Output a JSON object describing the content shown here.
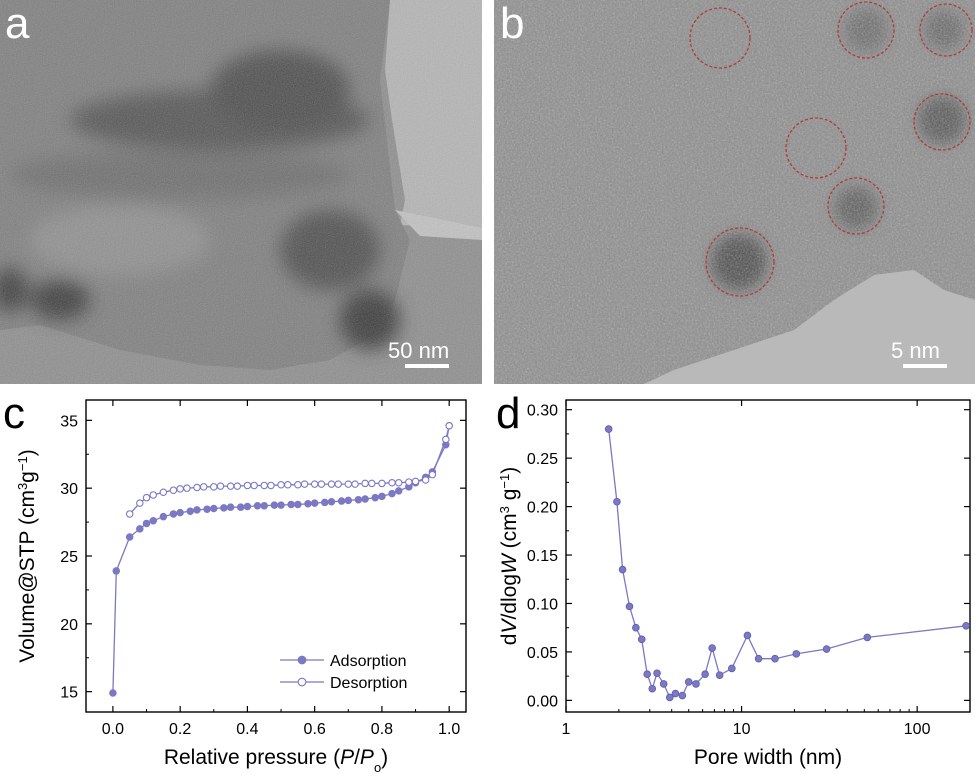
{
  "panels": {
    "a": {
      "letter": "a",
      "scale_label": "50 nm"
    },
    "b": {
      "letter": "b",
      "scale_label": "5 nm"
    },
    "c": {
      "letter": "c"
    },
    "d": {
      "letter": "d"
    }
  },
  "colors": {
    "series": "#7b78c4",
    "axis": "#000000",
    "circle": "#b33a3a"
  },
  "chart_data": [
    {
      "panel": "c",
      "type": "line",
      "xlabel_parts": [
        "Relative pressure (",
        "P",
        "/",
        "P",
        "o",
        ")"
      ],
      "ylabel_parts": [
        "Volume@STP (cm",
        "3",
        "g",
        "−1",
        ")"
      ],
      "xlim": [
        -0.08,
        1.05
      ],
      "ylim": [
        13.5,
        36.5
      ],
      "xticks": [
        "0.0",
        "0.2",
        "0.4",
        "0.6",
        "0.8",
        "1.0"
      ],
      "yticks": [
        "15",
        "20",
        "25",
        "30",
        "35"
      ],
      "legend_position": "bottom-right",
      "series": [
        {
          "name": "Adsorption",
          "marker": "filled",
          "points": [
            [
              0.0,
              14.9
            ],
            [
              0.01,
              23.9
            ],
            [
              0.05,
              26.4
            ],
            [
              0.08,
              27.0
            ],
            [
              0.1,
              27.4
            ],
            [
              0.12,
              27.6
            ],
            [
              0.15,
              27.9
            ],
            [
              0.18,
              28.1
            ],
            [
              0.2,
              28.2
            ],
            [
              0.23,
              28.3
            ],
            [
              0.25,
              28.4
            ],
            [
              0.28,
              28.45
            ],
            [
              0.3,
              28.5
            ],
            [
              0.33,
              28.55
            ],
            [
              0.35,
              28.6
            ],
            [
              0.38,
              28.6
            ],
            [
              0.4,
              28.65
            ],
            [
              0.43,
              28.7
            ],
            [
              0.45,
              28.7
            ],
            [
              0.48,
              28.75
            ],
            [
              0.5,
              28.75
            ],
            [
              0.53,
              28.8
            ],
            [
              0.55,
              28.8
            ],
            [
              0.58,
              28.85
            ],
            [
              0.6,
              28.9
            ],
            [
              0.63,
              28.95
            ],
            [
              0.65,
              29.0
            ],
            [
              0.68,
              29.05
            ],
            [
              0.7,
              29.1
            ],
            [
              0.73,
              29.15
            ],
            [
              0.75,
              29.2
            ],
            [
              0.78,
              29.3
            ],
            [
              0.8,
              29.4
            ],
            [
              0.83,
              29.6
            ],
            [
              0.85,
              29.8
            ],
            [
              0.88,
              30.1
            ],
            [
              0.9,
              30.4
            ],
            [
              0.93,
              30.8
            ],
            [
              0.95,
              31.2
            ],
            [
              0.99,
              33.2
            ],
            [
              1.0,
              34.6
            ]
          ]
        },
        {
          "name": "Desorption",
          "marker": "open",
          "points": [
            [
              1.0,
              34.6
            ],
            [
              0.99,
              33.6
            ],
            [
              0.95,
              31.0
            ],
            [
              0.93,
              30.6
            ],
            [
              0.9,
              30.5
            ],
            [
              0.88,
              30.45
            ],
            [
              0.85,
              30.4
            ],
            [
              0.83,
              30.4
            ],
            [
              0.8,
              30.35
            ],
            [
              0.77,
              30.35
            ],
            [
              0.75,
              30.35
            ],
            [
              0.72,
              30.3
            ],
            [
              0.7,
              30.3
            ],
            [
              0.67,
              30.3
            ],
            [
              0.65,
              30.3
            ],
            [
              0.62,
              30.3
            ],
            [
              0.6,
              30.3
            ],
            [
              0.57,
              30.3
            ],
            [
              0.55,
              30.25
            ],
            [
              0.52,
              30.25
            ],
            [
              0.5,
              30.25
            ],
            [
              0.47,
              30.2
            ],
            [
              0.45,
              30.2
            ],
            [
              0.42,
              30.2
            ],
            [
              0.4,
              30.2
            ],
            [
              0.37,
              30.15
            ],
            [
              0.35,
              30.15
            ],
            [
              0.32,
              30.15
            ],
            [
              0.3,
              30.1
            ],
            [
              0.27,
              30.1
            ],
            [
              0.25,
              30.05
            ],
            [
              0.22,
              30.0
            ],
            [
              0.2,
              29.95
            ],
            [
              0.18,
              29.85
            ],
            [
              0.15,
              29.7
            ],
            [
              0.12,
              29.5
            ],
            [
              0.1,
              29.3
            ],
            [
              0.08,
              28.9
            ],
            [
              0.05,
              28.1
            ]
          ]
        }
      ]
    },
    {
      "panel": "d",
      "type": "line",
      "xscale": "log",
      "xlabel_parts": [
        "Pore width (nm)"
      ],
      "ylabel_parts": [
        "d",
        "V",
        "/dlog",
        "W",
        "  (cm",
        "3",
        " g",
        "−1",
        ")"
      ],
      "xlim": [
        1,
        200
      ],
      "ylim": [
        -0.012,
        0.31
      ],
      "xticks": [
        "1",
        "10",
        "100"
      ],
      "yticks": [
        "0.00",
        "0.05",
        "0.10",
        "0.15",
        "0.20",
        "0.25",
        "0.30"
      ],
      "series": [
        {
          "marker": "filled",
          "points": [
            [
              1.75,
              0.28
            ],
            [
              1.95,
              0.205
            ],
            [
              2.1,
              0.135
            ],
            [
              2.3,
              0.097
            ],
            [
              2.5,
              0.075
            ],
            [
              2.7,
              0.063
            ],
            [
              2.9,
              0.027
            ],
            [
              3.1,
              0.012
            ],
            [
              3.3,
              0.028
            ],
            [
              3.6,
              0.017
            ],
            [
              3.9,
              0.003
            ],
            [
              4.2,
              0.007
            ],
            [
              4.6,
              0.005
            ],
            [
              5.0,
              0.019
            ],
            [
              5.5,
              0.017
            ],
            [
              6.2,
              0.027
            ],
            [
              6.8,
              0.054
            ],
            [
              7.5,
              0.026
            ],
            [
              8.8,
              0.033
            ],
            [
              10.8,
              0.067
            ],
            [
              12.5,
              0.043
            ],
            [
              15.5,
              0.043
            ],
            [
              20.5,
              0.048
            ],
            [
              30.5,
              0.053
            ],
            [
              52.0,
              0.065
            ],
            [
              190.0,
              0.077
            ]
          ]
        }
      ]
    }
  ]
}
